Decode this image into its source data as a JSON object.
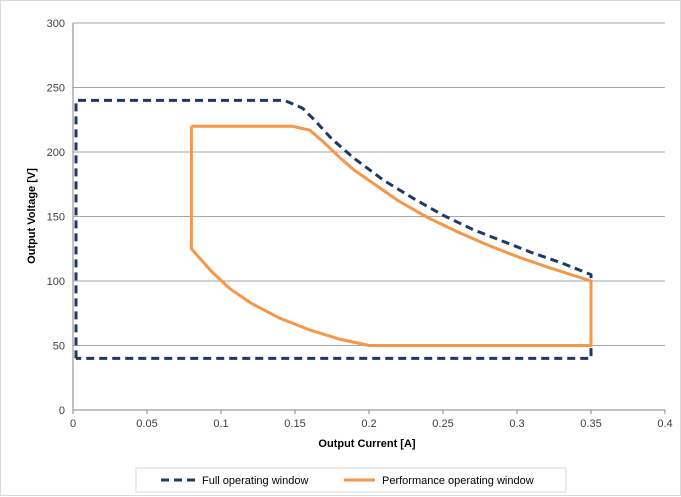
{
  "chart_data": {
    "type": "line",
    "title": "",
    "xlabel": "Output Current [A]",
    "ylabel": "Output Voltage [V]",
    "xlim": [
      0,
      0.4
    ],
    "ylim": [
      0,
      300
    ],
    "x_ticks": [
      "0",
      "0.05",
      "0.1",
      "0.15",
      "0.2",
      "0.25",
      "0.3",
      "0.35",
      "0.4"
    ],
    "y_ticks": [
      "0",
      "50",
      "100",
      "150",
      "200",
      "250",
      "300"
    ],
    "grid": "horizontal",
    "legend_position": "bottom",
    "series": [
      {
        "name": "Full operating window",
        "color": "#1f3864",
        "style": "dashed",
        "points": [
          [
            0.002,
            40
          ],
          [
            0.002,
            240
          ],
          [
            0.143,
            240
          ],
          [
            0.155,
            234
          ],
          [
            0.163,
            225
          ],
          [
            0.175,
            210
          ],
          [
            0.19,
            195
          ],
          [
            0.21,
            178
          ],
          [
            0.23,
            164
          ],
          [
            0.25,
            151
          ],
          [
            0.27,
            140
          ],
          [
            0.29,
            131
          ],
          [
            0.31,
            122
          ],
          [
            0.33,
            114
          ],
          [
            0.35,
            105
          ],
          [
            0.35,
            40
          ],
          [
            0.002,
            40
          ]
        ]
      },
      {
        "name": "Performance operating window",
        "color": "#f79646",
        "style": "solid",
        "points": [
          [
            0.08,
            220
          ],
          [
            0.148,
            220
          ],
          [
            0.16,
            217
          ],
          [
            0.17,
            207
          ],
          [
            0.18,
            196
          ],
          [
            0.19,
            186
          ],
          [
            0.2,
            178
          ],
          [
            0.22,
            162
          ],
          [
            0.24,
            149
          ],
          [
            0.26,
            138
          ],
          [
            0.28,
            128
          ],
          [
            0.3,
            119
          ],
          [
            0.32,
            111
          ],
          [
            0.35,
            100
          ],
          [
            0.35,
            50
          ],
          [
            0.2,
            50
          ],
          [
            0.18,
            55
          ],
          [
            0.16,
            62
          ],
          [
            0.14,
            71
          ],
          [
            0.12,
            83
          ],
          [
            0.106,
            94
          ],
          [
            0.094,
            107
          ],
          [
            0.08,
            125
          ],
          [
            0.08,
            220
          ]
        ]
      }
    ]
  }
}
